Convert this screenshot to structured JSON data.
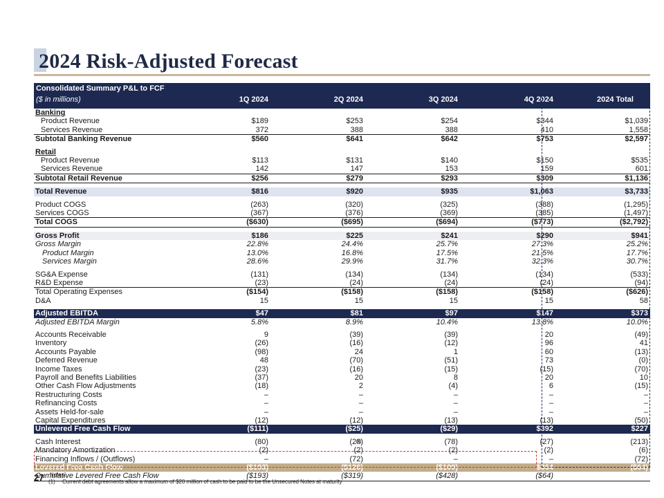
{
  "title": "2024 Risk-Adjusted Forecast",
  "header": {
    "line1": "Consolidated Summary P&L to FCF",
    "line2": "($ in millions)",
    "columns": [
      "1Q 2024",
      "2Q 2024",
      "3Q 2024",
      "4Q 2024",
      "2024 Total"
    ]
  },
  "rows": [
    {
      "label": "Banking",
      "v": [
        "",
        "",
        "",
        "",
        ""
      ]
    },
    {
      "label": "Product Revenue",
      "v": [
        "$189",
        "$253",
        "$254",
        "$344",
        "$1,039"
      ]
    },
    {
      "label": "Services Revenue",
      "v": [
        "372",
        "388",
        "388",
        "410",
        "1,558"
      ]
    },
    {
      "label": "Subtotal Banking Revenue",
      "v": [
        "$560",
        "$641",
        "$642",
        "$753",
        "$2,597"
      ]
    },
    {
      "label": "Retail",
      "v": [
        "",
        "",
        "",
        "",
        ""
      ]
    },
    {
      "label": "Product Revenue",
      "v": [
        "$113",
        "$131",
        "$140",
        "$150",
        "$535"
      ]
    },
    {
      "label": "Services Revenue",
      "v": [
        "142",
        "147",
        "153",
        "159",
        "601"
      ]
    },
    {
      "label": "Subtotal Retail Revenue",
      "v": [
        "$256",
        "$279",
        "$293",
        "$309",
        "$1,136"
      ]
    },
    {
      "label": "Total Revenue",
      "v": [
        "$816",
        "$920",
        "$935",
        "$1,063",
        "$3,733"
      ]
    },
    {
      "label": "Product COGS",
      "v": [
        "(263)",
        "(320)",
        "(325)",
        "(388)",
        "(1,295)"
      ]
    },
    {
      "label": "Services COGS",
      "v": [
        "(367)",
        "(376)",
        "(369)",
        "(385)",
        "(1,497)"
      ]
    },
    {
      "label": "Total COGS",
      "v": [
        "($630)",
        "($695)",
        "($694)",
        "($773)",
        "($2,792)"
      ]
    },
    {
      "label": "Gross Profit",
      "v": [
        "$186",
        "$225",
        "$241",
        "$290",
        "$941"
      ]
    },
    {
      "label": "Gross Margin",
      "v": [
        "22.8%",
        "24.4%",
        "25.7%",
        "27.3%",
        "25.2%"
      ]
    },
    {
      "label": "Product Margin",
      "v": [
        "13.0%",
        "16.8%",
        "17.5%",
        "21.5%",
        "17.7%"
      ]
    },
    {
      "label": "Services Margin",
      "v": [
        "28.6%",
        "29.9%",
        "31.7%",
        "32.3%",
        "30.7%"
      ]
    },
    {
      "label": "SG&A Expense",
      "v": [
        "(131)",
        "(134)",
        "(134)",
        "(134)",
        "(533)"
      ]
    },
    {
      "label": "R&D Expense",
      "v": [
        "(23)",
        "(24)",
        "(24)",
        "(24)",
        "(94)"
      ]
    },
    {
      "label": "Total Operating Expenses",
      "v": [
        "($154)",
        "($158)",
        "($158)",
        "($158)",
        "($626)"
      ]
    },
    {
      "label": "D&A",
      "v": [
        "15",
        "15",
        "15",
        "15",
        "58"
      ]
    },
    {
      "label": "Adjusted EBITDA",
      "v": [
        "$47",
        "$81",
        "$97",
        "$147",
        "$373"
      ]
    },
    {
      "label": "Adjusted EBITDA Margin",
      "v": [
        "5.8%",
        "8.9%",
        "10.4%",
        "13.8%",
        "10.0%"
      ]
    },
    {
      "label": "Accounts Receivable",
      "v": [
        "9",
        "(39)",
        "(39)",
        "20",
        "(49)"
      ]
    },
    {
      "label": "Inventory",
      "v": [
        "(26)",
        "(16)",
        "(12)",
        "96",
        "41"
      ]
    },
    {
      "label": "Accounts Payable",
      "v": [
        "(98)",
        "24",
        "1",
        "60",
        "(13)"
      ]
    },
    {
      "label": "Deferred Revenue",
      "v": [
        "48",
        "(70)",
        "(51)",
        "73",
        "(0)"
      ]
    },
    {
      "label": "Income Taxes",
      "v": [
        "(23)",
        "(16)",
        "(15)",
        "(15)",
        "(70)"
      ]
    },
    {
      "label": "Payroll and Benefits Liabilities",
      "v": [
        "(37)",
        "20",
        "8",
        "20",
        "10"
      ]
    },
    {
      "label": "Other Cash Flow Adjustments",
      "v": [
        "(18)",
        "2",
        "(4)",
        "6",
        "(15)"
      ]
    },
    {
      "label": "Restructuring Costs",
      "v": [
        "–",
        "–",
        "–",
        "–",
        "–"
      ]
    },
    {
      "label": "Refinancing Costs",
      "v": [
        "–",
        "–",
        "–",
        "–",
        "–"
      ]
    },
    {
      "label": "Assets Held-for-sale",
      "v": [
        "–",
        "–",
        "–",
        "–",
        "–"
      ]
    },
    {
      "label": "Capital Expenditures",
      "v": [
        "(12)",
        "(12)",
        "(13)",
        "(13)",
        "(50)"
      ]
    },
    {
      "label": "Unlevered Free Cash Flow",
      "v": [
        "($111)",
        "($25)",
        "($29)",
        "$392",
        "$227"
      ]
    },
    {
      "label": "Cash Interest",
      "v": [
        "(80)",
        "(28)",
        "(78)",
        "(27)",
        "(213)"
      ]
    },
    {
      "label": "Mandatory Amortization",
      "v": [
        "(2)",
        "(2)",
        "(2)",
        "(2)",
        "(6)"
      ]
    },
    {
      "label": "Financing Inflows / (Outflows)",
      "v": [
        "–",
        "(72)",
        "–",
        "–",
        "(72)"
      ]
    },
    {
      "label": "Levered Free Cash Flow",
      "v": [
        "($193)",
        "($126)",
        "($109)",
        "$364",
        "($64)"
      ]
    },
    {
      "label": "Cumulative Levered Free Cash Flow",
      "v": [
        "($193)",
        "($319)",
        "($428)",
        "($64)",
        ""
      ]
    }
  ],
  "footnote_marker": "(1)",
  "page_number": "27",
  "notes": {
    "heading": "Notes:",
    "items": [
      {
        "num": "(1)",
        "text": "Current debt agreements allow a maximum of $20 million of cash to be paid to be the Unsecured Notes at maturity"
      }
    ]
  }
}
